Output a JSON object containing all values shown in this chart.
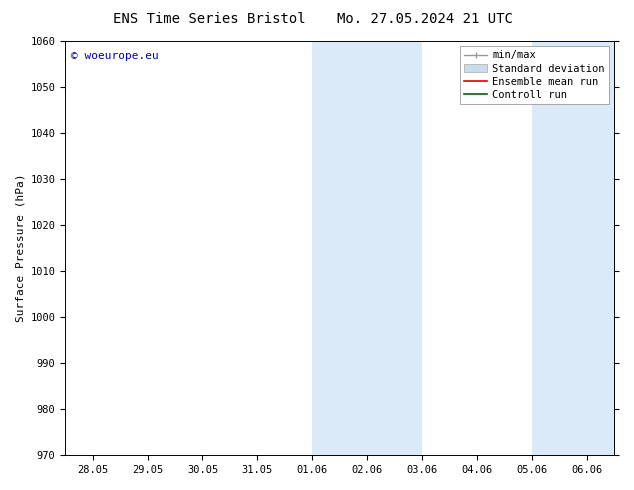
{
  "title_left": "ENS Time Series Bristol",
  "title_right": "Mo. 27.05.2024 21 UTC",
  "ylabel": "Surface Pressure (hPa)",
  "ylim": [
    970,
    1060
  ],
  "yticks": [
    970,
    980,
    990,
    1000,
    1010,
    1020,
    1030,
    1040,
    1050,
    1060
  ],
  "xtick_labels": [
    "28.05",
    "29.05",
    "30.05",
    "31.05",
    "01.06",
    "02.06",
    "03.06",
    "04.06",
    "05.06",
    "06.06"
  ],
  "xtick_positions": [
    0,
    1,
    2,
    3,
    4,
    5,
    6,
    7,
    8,
    9
  ],
  "xlim": [
    -0.5,
    9.5
  ],
  "shaded_regions": [
    {
      "start": 4,
      "end": 6
    },
    {
      "start": 8,
      "end": 9.5
    }
  ],
  "shaded_color": "#daeaf8",
  "background_color": "#ffffff",
  "watermark_text": "© woeurope.eu",
  "watermark_color": "#0000bb",
  "legend_items": [
    {
      "label": "min/max",
      "color": "#999999",
      "lw": 1.0,
      "type": "minmax"
    },
    {
      "label": "Standard deviation",
      "color": "#c8dced",
      "lw": 5,
      "type": "patch"
    },
    {
      "label": "Ensemble mean run",
      "color": "#dd0000",
      "lw": 1.2,
      "type": "line"
    },
    {
      "label": "Controll run",
      "color": "#006600",
      "lw": 1.2,
      "type": "line"
    }
  ],
  "font_size_title": 10,
  "font_size_axis": 8,
  "font_size_tick": 7.5,
  "font_size_legend": 7.5,
  "font_size_watermark": 8
}
